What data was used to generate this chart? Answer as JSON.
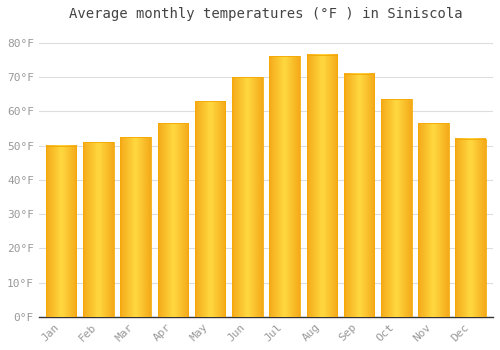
{
  "title": "Average monthly temperatures (°F ) in Siniscola",
  "months": [
    "Jan",
    "Feb",
    "Mar",
    "Apr",
    "May",
    "Jun",
    "Jul",
    "Aug",
    "Sep",
    "Oct",
    "Nov",
    "Dec"
  ],
  "values": [
    50.0,
    51.0,
    52.5,
    56.5,
    63.0,
    70.0,
    76.0,
    76.5,
    71.0,
    63.5,
    56.5,
    52.0
  ],
  "bar_color_center": "#FFD040",
  "bar_color_edge": "#F5A800",
  "background_color": "#FFFFFF",
  "grid_color": "#DDDDDD",
  "yticks": [
    0,
    10,
    20,
    30,
    40,
    50,
    60,
    70,
    80
  ],
  "ylim": [
    0,
    84
  ],
  "title_fontsize": 10,
  "tick_fontsize": 8,
  "tick_color": "#999999",
  "title_color": "#444444",
  "bar_width": 0.82
}
